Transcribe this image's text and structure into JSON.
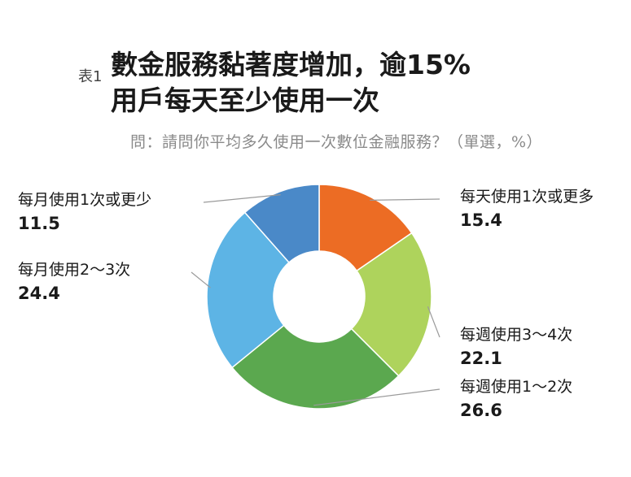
{
  "title": {
    "tag": "表1",
    "line1": "數金服務黏著度增加，逾15%",
    "line2": "用戶每天至少使用一次"
  },
  "subtitle": "問：請問你平均多久使用一次數位金融服務？（單選，%）",
  "chart_data": {
    "type": "pie",
    "donut": true,
    "title": "數金服務黏著度增加，逾15%用戶每天至少使用一次",
    "subtitle": "問：請問你平均多久使用一次數位金融服務？（單選，%）",
    "unit": "%",
    "categories": [
      "每天使用1次或更多",
      "每週使用3～4次",
      "每週使用1～2次",
      "每月使用2～3次",
      "每月使用1次或更少"
    ],
    "values": [
      15.4,
      22.1,
      26.6,
      24.4,
      11.5
    ],
    "colors": [
      "#ec6c24",
      "#aed35c",
      "#5ba84f",
      "#5db4e5",
      "#4a89c8"
    ]
  }
}
